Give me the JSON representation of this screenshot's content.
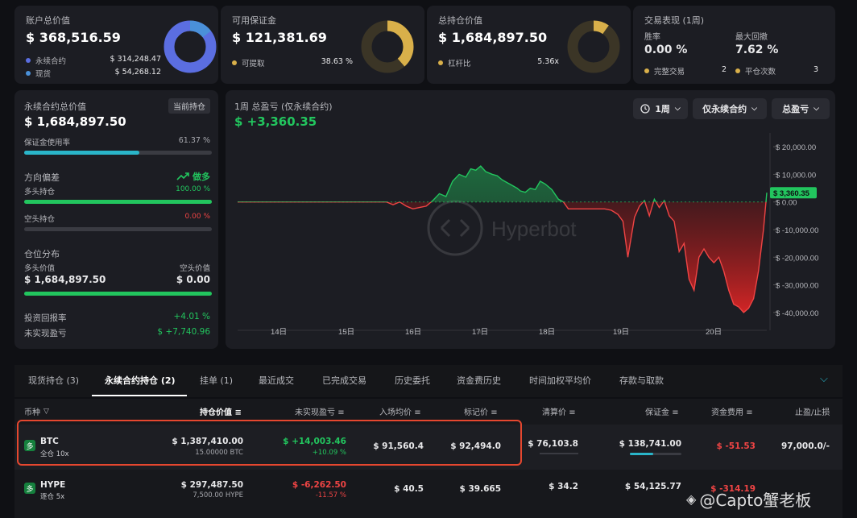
{
  "cards": {
    "account": {
      "title": "账户总价值",
      "value": "$ 368,516.59",
      "items": [
        {
          "label": "永续合约",
          "value": "$ 314,248.47",
          "color": "#5b6ee1"
        },
        {
          "label": "现货",
          "value": "$ 54,268.12",
          "color": "#4a90d9"
        }
      ]
    },
    "margin": {
      "title": "可用保证金",
      "value": "$ 121,381.69",
      "item_label": "可提取",
      "item_value": "38.63 %",
      "color": "#d9b04a"
    },
    "holdings": {
      "title": "总持仓价值",
      "value": "$ 1,684,897.50",
      "item_label": "杠杆比",
      "item_value": "5.36x",
      "color": "#d9b04a"
    },
    "performance": {
      "title": "交易表现 (1周)",
      "win_rate_label": "胜率",
      "win_rate": "0.00 %",
      "drawdown_label": "最大回撤",
      "drawdown": "7.62 %",
      "completed_label": "完整交易",
      "completed": "2",
      "flat_label": "平仓次数",
      "flat": "3"
    }
  },
  "perp": {
    "title": "永续合约总价值",
    "badge": "当前持仓",
    "value": "$ 1,684,897.50",
    "margin_label": "保证金使用率",
    "margin_pct": "61.37 %",
    "margin_fraction": 0.6137,
    "direction_label": "方向偏差",
    "direction_value": "做多",
    "long_label": "多头持仓",
    "long_pct": "100.00 %",
    "long_fraction": 1.0,
    "short_label": "空头持仓",
    "short_pct": "0.00 %",
    "short_fraction": 0.0,
    "distribution_label": "仓位分布",
    "long_value_label": "多头价值",
    "long_value": "$ 1,684,897.50",
    "short_value_label": "空头价值",
    "short_value": "$ 0.00",
    "roi_label": "投资回报率",
    "roi": "+4.01 %",
    "unrealized_label": "未实现盈亏",
    "unrealized": "$ +7,740.96"
  },
  "chart_header": {
    "title": "1周 总盈亏 (仅永续合约)",
    "value": "$ +3,360.35",
    "period": "1周",
    "filter": "仅永续合约",
    "metric": "总盈亏",
    "watermark": "Hyperbot"
  },
  "chart_data": {
    "type": "area",
    "x_ticks": [
      "14日",
      "15日",
      "16日",
      "17日",
      "18日",
      "19日",
      "20日"
    ],
    "y_ticks": [
      "$ 20,000.00",
      "$ 10,000.00",
      "$ 0.00",
      "$ -10,000.00",
      "$ -20,000.00",
      "$ -30,000.00",
      "$ -40,000.00"
    ],
    "ylim": [
      -45000,
      25000
    ],
    "last_label": "$ 3,360.35",
    "x": [
      0,
      0.3,
      0.6,
      0.9,
      1.1,
      1.3,
      1.5,
      1.7,
      2.0,
      2.15,
      2.3,
      2.5,
      2.7,
      2.9,
      3.1,
      3.3,
      3.45,
      3.6,
      3.75,
      3.9,
      4.0,
      4.15,
      4.3,
      4.5,
      4.7,
      4.9,
      5.1,
      5.3,
      5.5,
      5.7,
      5.9,
      6.1,
      6.3,
      6.5,
      6.7,
      6.9,
      7.05,
      7.2,
      7.35,
      7.5,
      7.7,
      7.85,
      8.0,
      8.15,
      8.3,
      8.45,
      8.55,
      8.7,
      8.85,
      9.0,
      9.15,
      9.3,
      9.5,
      9.7,
      9.85,
      10.0,
      10.15,
      10.3,
      10.45,
      10.6,
      10.75,
      10.9,
      11.1,
      11.3,
      11.5,
      11.65,
      11.8,
      12.0,
      12.15,
      12.3,
      12.45,
      12.6,
      12.75,
      12.9,
      13.05,
      13.2,
      13.35,
      13.5,
      13.65,
      13.8,
      13.95,
      14.1,
      14.25,
      14.4,
      14.55,
      14.7,
      14.85,
      15.0,
      15.15,
      15.3,
      15.45,
      15.6,
      15.75,
      15.9,
      16.0
    ],
    "values": [
      0,
      0,
      0,
      0,
      0,
      0,
      0,
      0,
      0,
      0,
      0,
      0,
      0,
      0,
      0,
      0,
      0,
      0,
      0,
      0,
      0,
      0,
      0,
      0,
      -1000,
      0,
      -1500,
      -2500,
      -2000,
      -1500,
      500,
      3000,
      2000,
      7500,
      10000,
      9000,
      12000,
      11500,
      13000,
      11000,
      10000,
      9500,
      8000,
      7000,
      6000,
      5000,
      4000,
      3500,
      5000,
      4500,
      7500,
      6500,
      4500,
      1000,
      0,
      -2500,
      -2500,
      -2500,
      -2500,
      -2500,
      -2500,
      -2500,
      -2500,
      -3000,
      -4500,
      -7000,
      -20000,
      -5500,
      -1500,
      500,
      -5000,
      1000,
      -2000,
      500,
      -5000,
      -7000,
      -18000,
      -15000,
      -28000,
      -32000,
      -20000,
      -17000,
      -20000,
      -22000,
      -20000,
      -25000,
      -32000,
      -37000,
      -38000,
      -40000,
      -38500,
      -35000,
      -25000,
      -10000,
      3360.35
    ]
  },
  "tabs": [
    "现货持仓 (3)",
    "永续合约持仓 (2)",
    "挂单 (1)",
    "最近成交",
    "已完成交易",
    "历史委托",
    "资金费历史",
    "时间加权平均价",
    "存款与取款"
  ],
  "table": {
    "headers": [
      "币种",
      "持仓价值",
      "未实现盈亏",
      "入场均价",
      "标记价",
      "清算价",
      "保证金",
      "资金费用",
      "止盈/止损"
    ],
    "rows": [
      {
        "badge": "多",
        "symbol": "BTC",
        "mode": "全仓 10x",
        "value": "$ 1,387,410.00",
        "size": "15.00000 BTC",
        "pnl": "$ +14,003.46",
        "pnl_pct": "+10.09 %",
        "entry": "$ 91,560.4",
        "mark": "$ 92,494.0",
        "liq": "$ 76,103.8",
        "margin": "$ 138,741.00",
        "funding": "$ -51.53",
        "tpsl": "97,000.0/-"
      },
      {
        "badge": "多",
        "symbol": "HYPE",
        "mode": "逐仓 5x",
        "value": "$ 297,487.50",
        "size": "7,500.00 HYPE",
        "pnl": "$ -6,262.50",
        "pnl_pct": "-11.57 %",
        "entry": "$ 40.5",
        "mark": "$ 39.665",
        "liq": "$ 34.2",
        "margin": "$ 54,125.77",
        "funding": "$ -314.19",
        "tpsl": ""
      }
    ]
  },
  "watermark_footer": "@Capto蟹老板",
  "colors": {
    "green": "#22c55e",
    "red": "#ef4444",
    "teal": "#2ab5c9",
    "highlight": "#e5472f"
  }
}
